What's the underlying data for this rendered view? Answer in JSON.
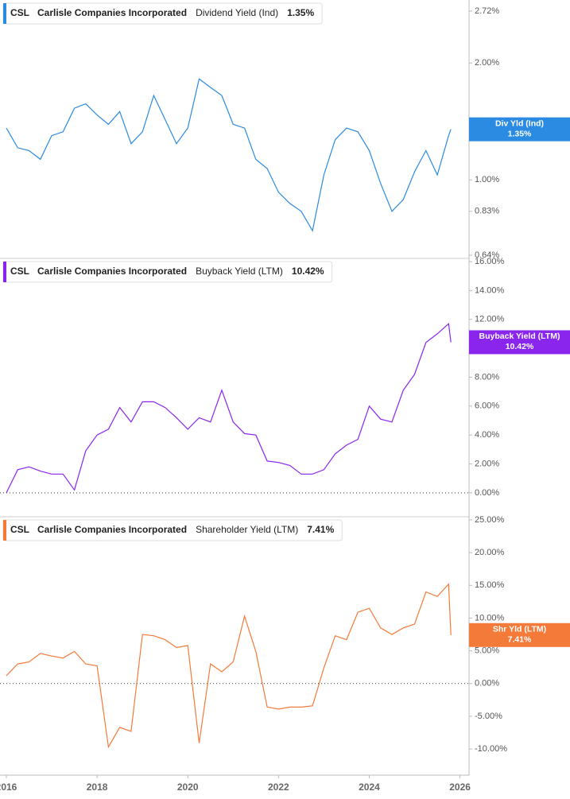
{
  "chart_data": [
    {
      "type": "line",
      "ticker": "CSL",
      "company": "Carlisle Companies Incorporated",
      "log": true,
      "zero_line": false,
      "xlim": [
        2015.86,
        2026.2
      ],
      "x": [
        2016.0,
        2016.25,
        2016.5,
        2016.75,
        2017.0,
        2017.25,
        2017.5,
        2017.75,
        2018.0,
        2018.25,
        2018.5,
        2018.75,
        2019.0,
        2019.25,
        2019.5,
        2019.75,
        2020.0,
        2020.25,
        2020.5,
        2020.75,
        2021.0,
        2021.25,
        2021.5,
        2021.75,
        2022.0,
        2022.25,
        2022.5,
        2022.75,
        2023.0,
        2023.25,
        2023.5,
        2023.75,
        2024.0,
        2024.25,
        2024.5,
        2024.75,
        2025.0,
        2025.25,
        2025.5,
        2025.75,
        2025.8
      ],
      "ylim": [
        0.64,
        2.72
      ],
      "yticks": [
        {
          "value": 2.72,
          "label": "2.72%"
        },
        {
          "value": 2.0,
          "label": "2.00%"
        },
        {
          "value": 1.0,
          "label": "1.00%"
        },
        {
          "value": 0.83,
          "label": "0.83%"
        },
        {
          "value": 0.64,
          "label": "0.64%"
        }
      ],
      "series": [
        {
          "name": "Dividend Yield (Ind)",
          "short_name": "Div Yld (Ind)",
          "last_label": "1.35%",
          "color": "#2b8ae2",
          "values": [
            1.36,
            1.21,
            1.19,
            1.13,
            1.3,
            1.33,
            1.53,
            1.57,
            1.47,
            1.39,
            1.5,
            1.24,
            1.33,
            1.65,
            1.43,
            1.24,
            1.36,
            1.82,
            1.73,
            1.65,
            1.39,
            1.36,
            1.13,
            1.07,
            0.93,
            0.87,
            0.83,
            0.74,
            1.03,
            1.27,
            1.36,
            1.33,
            1.19,
            0.98,
            0.83,
            0.89,
            1.05,
            1.19,
            1.03,
            1.3,
            1.35
          ]
        }
      ]
    },
    {
      "type": "line",
      "ticker": "CSL",
      "company": "Carlisle Companies Incorporated",
      "log": false,
      "zero_line": true,
      "xlim": [
        2015.86,
        2026.2
      ],
      "x": [
        2016.0,
        2016.25,
        2016.5,
        2016.75,
        2017.0,
        2017.25,
        2017.5,
        2017.75,
        2018.0,
        2018.25,
        2018.5,
        2018.75,
        2019.0,
        2019.25,
        2019.5,
        2019.75,
        2020.0,
        2020.25,
        2020.5,
        2020.75,
        2021.0,
        2021.25,
        2021.5,
        2021.75,
        2022.0,
        2022.25,
        2022.5,
        2022.75,
        2023.0,
        2023.25,
        2023.5,
        2023.75,
        2024.0,
        2024.25,
        2024.5,
        2024.75,
        2025.0,
        2025.25,
        2025.5,
        2025.75,
        2025.8
      ],
      "ylim": [
        -1.6,
        16
      ],
      "yticks": [
        {
          "value": 16,
          "label": "16.00%"
        },
        {
          "value": 14,
          "label": "14.00%"
        },
        {
          "value": 12,
          "label": "12.00%"
        },
        {
          "value": 10,
          "label": "10.00%"
        },
        {
          "value": 8,
          "label": "8.00%"
        },
        {
          "value": 6,
          "label": "6.00%"
        },
        {
          "value": 4,
          "label": "4.00%"
        },
        {
          "value": 2,
          "label": "2.00%"
        },
        {
          "value": 0,
          "label": "0.00%"
        }
      ],
      "series": [
        {
          "name": "Buyback Yield (LTM)",
          "short_name": "Buyback Yield (LTM)",
          "last_label": "10.42%",
          "color": "#8a25ee",
          "values": [
            0,
            1.6,
            1.8,
            1.5,
            1.3,
            1.3,
            0.2,
            2.9,
            4.0,
            4.4,
            5.9,
            4.9,
            6.3,
            6.3,
            5.9,
            5.2,
            4.4,
            5.2,
            4.9,
            7.1,
            4.9,
            4.1,
            4.0,
            2.2,
            2.1,
            1.9,
            1.3,
            1.3,
            1.6,
            2.7,
            3.3,
            3.7,
            6.0,
            5.1,
            4.9,
            7.1,
            8.2,
            10.4,
            11.0,
            11.7,
            10.42
          ]
        }
      ]
    },
    {
      "type": "line",
      "ticker": "CSL",
      "company": "Carlisle Companies Incorporated",
      "log": false,
      "zero_line": true,
      "xlim": [
        2015.86,
        2026.2
      ],
      "xticks": [
        2016,
        2018,
        2020,
        2022,
        2024,
        2026
      ],
      "x": [
        2016.0,
        2016.25,
        2016.5,
        2016.75,
        2017.0,
        2017.25,
        2017.5,
        2017.75,
        2018.0,
        2018.25,
        2018.5,
        2018.75,
        2019.0,
        2019.25,
        2019.5,
        2019.75,
        2020.0,
        2020.25,
        2020.5,
        2020.75,
        2021.0,
        2021.25,
        2021.5,
        2021.75,
        2022.0,
        2022.25,
        2022.5,
        2022.75,
        2023.0,
        2023.25,
        2023.5,
        2023.75,
        2024.0,
        2024.25,
        2024.5,
        2024.75,
        2025.0,
        2025.25,
        2025.5,
        2025.75,
        2025.8
      ],
      "ylim": [
        -14,
        25
      ],
      "yticks": [
        {
          "value": 25,
          "label": "25.00%"
        },
        {
          "value": 20,
          "label": "20.00%"
        },
        {
          "value": 15,
          "label": "15.00%"
        },
        {
          "value": 10,
          "label": "10.00%"
        },
        {
          "value": 5,
          "label": "5.00%"
        },
        {
          "value": 0,
          "label": "0.00%"
        },
        {
          "value": -5,
          "label": "-5.00%"
        },
        {
          "value": -10,
          "label": "-10.00%"
        }
      ],
      "series": [
        {
          "name": "Shareholder Yield (LTM)",
          "short_name": "Shr Yld (LTM)",
          "last_label": "7.41%",
          "color": "#f47a3a",
          "values": [
            1.2,
            3.0,
            3.3,
            4.6,
            4.2,
            3.9,
            4.9,
            3.0,
            2.7,
            -9.7,
            -6.7,
            -7.3,
            7.5,
            7.3,
            6.7,
            5.5,
            5.8,
            -9.1,
            3.0,
            1.8,
            3.3,
            10.3,
            4.9,
            -3.6,
            -3.9,
            -3.6,
            -3.6,
            -3.4,
            2.4,
            7.3,
            6.7,
            10.9,
            11.5,
            8.5,
            7.5,
            8.5,
            9.1,
            14.0,
            13.3,
            15.2,
            7.41
          ]
        }
      ]
    }
  ]
}
